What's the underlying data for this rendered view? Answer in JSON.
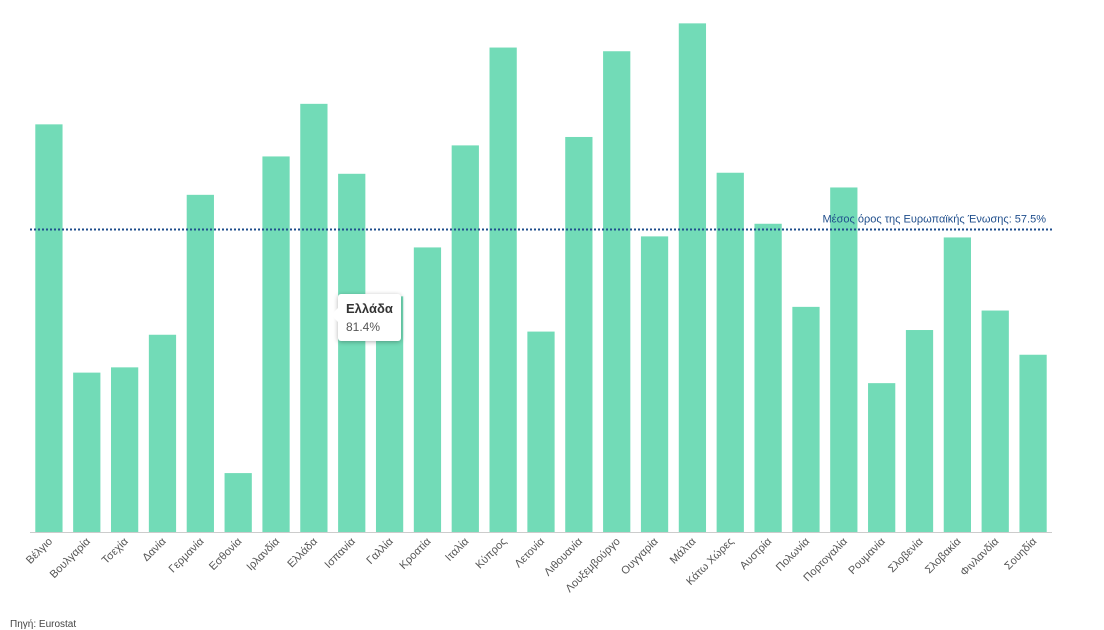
{
  "chart_data": {
    "type": "bar",
    "categories": [
      "Βέλγιο",
      "Βουλγαρία",
      "Τσεχία",
      "Δανία",
      "Γερμανία",
      "Εσθονία",
      "Ιρλανδία",
      "Ελλάδα",
      "Ισπανία",
      "Γαλλία",
      "Κροατία",
      "Ιταλία",
      "Κύπρος",
      "Λετονία",
      "Λιθουανία",
      "Λουξεμβούργο",
      "Ουγγαρία",
      "Μάλτα",
      "Κάτω Χώρες",
      "Αυστρία",
      "Πολωνία",
      "Πορτογαλία",
      "Ρουμανία",
      "Σλοβενία",
      "Σλοβακία",
      "Φινλανδία",
      "Σουηδία"
    ],
    "values": [
      77.5,
      30.3,
      31.3,
      37.5,
      64.1,
      11.2,
      71.4,
      81.4,
      68.1,
      44.8,
      54.1,
      73.5,
      92.1,
      38.1,
      75.1,
      91.4,
      56.2,
      96.7,
      68.3,
      58.6,
      42.8,
      65.5,
      28.3,
      38.4,
      56.0,
      42.1,
      33.7
    ],
    "ylim": [
      0,
      100
    ],
    "color": "#72dbb7",
    "reference_line": {
      "value": 57.5,
      "label": "Μέσος όρος της Ευρωπαϊκής Ένωσης: 57.5%",
      "color": "#1f4e8c"
    },
    "tooltip": {
      "category": "Ελλάδα",
      "value_text": "81.4%"
    },
    "grid": false,
    "legend": "none"
  },
  "source": "Πηγή: Eurostat"
}
